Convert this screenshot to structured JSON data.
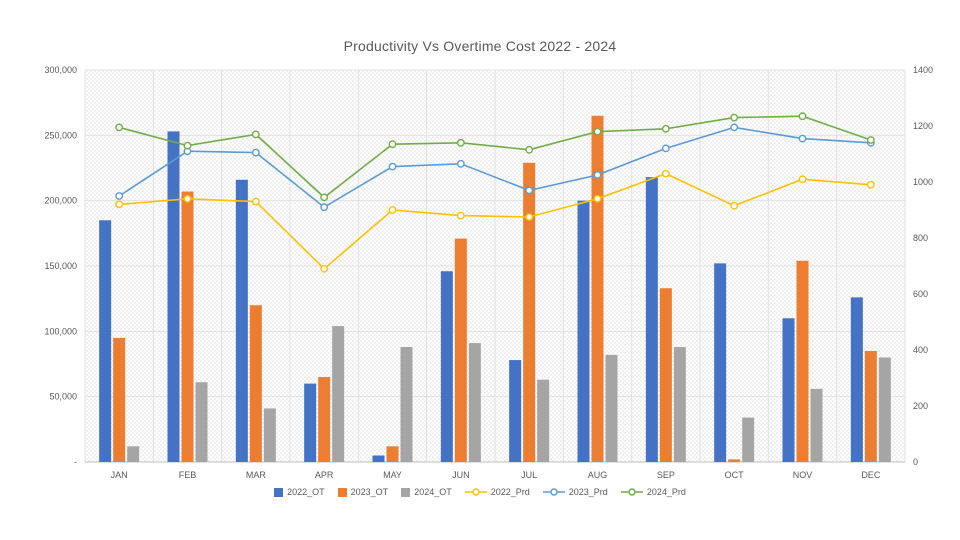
{
  "chart_data": {
    "type": "combo",
    "title": "Productivity Vs Overtime Cost 2022 - 2024",
    "categories": [
      "JAN",
      "FEB",
      "MAR",
      "APR",
      "MAY",
      "JUN",
      "JUL",
      "AUG",
      "SEP",
      "OCT",
      "NOV",
      "DEC"
    ],
    "grid": true,
    "legend_position": "bottom",
    "left_axis": {
      "min": 0,
      "max": 300000,
      "step": 50000,
      "tick_labels": [
        "-",
        "50,000",
        "100,000",
        "150,000",
        "200,000",
        "250,000",
        "300,000"
      ]
    },
    "right_axis": {
      "min": 0,
      "max": 1400,
      "step": 200,
      "tick_labels": [
        "0",
        "200",
        "400",
        "600",
        "800",
        "1000",
        "1200",
        "1400"
      ]
    },
    "bar_series": [
      {
        "name": "2022_OT",
        "color": "#4472C4",
        "values": [
          185000,
          253000,
          216000,
          60000,
          5000,
          146000,
          78000,
          200000,
          218000,
          152000,
          110000,
          126000
        ]
      },
      {
        "name": "2023_OT",
        "color": "#ED7D31",
        "values": [
          95000,
          207000,
          120000,
          65000,
          12000,
          171000,
          229000,
          265000,
          133000,
          2000,
          154000,
          85000
        ]
      },
      {
        "name": "2024_OT",
        "color": "#A5A5A5",
        "values": [
          12000,
          61000,
          41000,
          104000,
          88000,
          91000,
          63000,
          82000,
          88000,
          34000,
          56000,
          80000
        ]
      }
    ],
    "line_series": [
      {
        "name": "2022_Prd",
        "color": "#FFC000",
        "values": [
          920,
          940,
          930,
          690,
          900,
          880,
          875,
          940,
          1030,
          915,
          1010,
          990
        ]
      },
      {
        "name": "2023_Prd",
        "color": "#5B9BD5",
        "values": [
          950,
          1110,
          1105,
          910,
          1055,
          1065,
          970,
          1025,
          1120,
          1195,
          1155,
          1140
        ]
      },
      {
        "name": "2024_Prd",
        "color": "#70AD47",
        "values": [
          1195,
          1130,
          1170,
          945,
          1135,
          1140,
          1115,
          1180,
          1190,
          1230,
          1235,
          1150
        ]
      }
    ],
    "colors": {
      "grid": "#e2e2e2",
      "axis_line": "#bfbfbf",
      "text": "#595959",
      "plot_hatch": "#f0f0f0"
    }
  }
}
